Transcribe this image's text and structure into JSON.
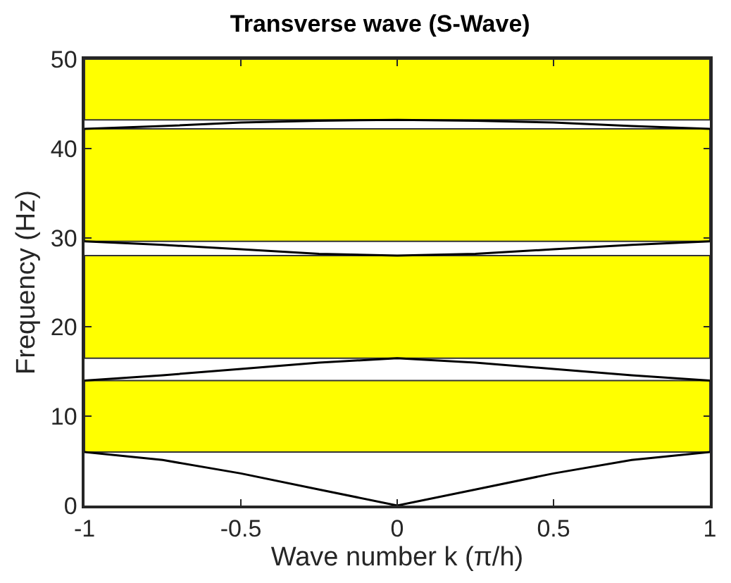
{
  "chart_data": {
    "type": "line",
    "title": "Transverse wave (S-Wave)",
    "xlabel": "Wave number k (π/h)",
    "ylabel": "Frequency (Hz)",
    "x": [
      -1,
      -0.75,
      -0.5,
      -0.25,
      0,
      0.25,
      0.5,
      0.75,
      1
    ],
    "series": [
      {
        "color": "#000000",
        "values": [
          6,
          5.1,
          3.6,
          1.8,
          0,
          1.8,
          3.6,
          5.1,
          6
        ]
      },
      {
        "color": "#000000",
        "values": [
          14,
          14.6,
          15.3,
          16,
          16.5,
          16,
          15.3,
          14.6,
          14
        ]
      },
      {
        "color": "#000000",
        "values": [
          29.6,
          29.2,
          28.7,
          28.2,
          28,
          28.2,
          28.7,
          29.2,
          29.6
        ]
      },
      {
        "color": "#000000",
        "values": [
          42.2,
          42.5,
          42.9,
          43.1,
          43.2,
          43.1,
          42.9,
          42.5,
          42.2
        ]
      }
    ],
    "bands": [
      {
        "axis": "y",
        "from": 6,
        "to": 14,
        "color": "#ffff00"
      },
      {
        "axis": "y",
        "from": 16.5,
        "to": 28,
        "color": "#ffff00"
      },
      {
        "axis": "y",
        "from": 29.6,
        "to": 42.2,
        "color": "#ffff00"
      },
      {
        "axis": "y",
        "from": 43.2,
        "to": 50,
        "color": "#ffff00"
      }
    ],
    "xlim": [
      -1,
      1
    ],
    "ylim": [
      0,
      50
    ],
    "xticks": [
      -1,
      -0.5,
      0,
      0.5,
      1
    ],
    "yticks": [
      0,
      10,
      20,
      30,
      40,
      50
    ],
    "grid": false,
    "marker": "none",
    "line_style": "solid"
  }
}
